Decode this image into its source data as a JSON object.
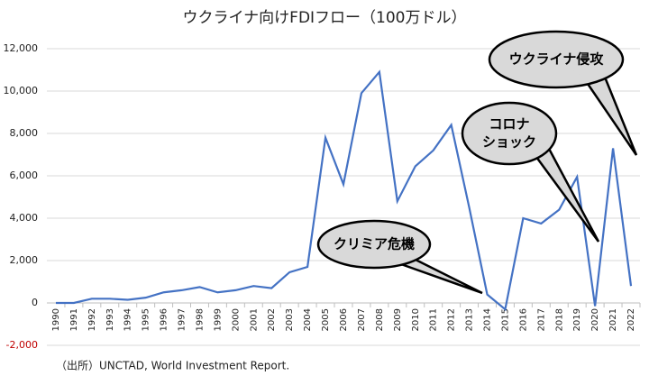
{
  "chart_data": {
    "type": "line",
    "title": "ウクライナ向けFDIフロー（100万ドル）",
    "categories": [
      "1990",
      "1991",
      "1992",
      "1993",
      "1994",
      "1995",
      "1996",
      "1997",
      "1998",
      "1999",
      "2000",
      "2001",
      "2002",
      "2003",
      "2004",
      "2005",
      "2006",
      "2007",
      "2008",
      "2009",
      "2010",
      "2011",
      "2012",
      "2013",
      "2014",
      "2015",
      "2016",
      "2017",
      "2018",
      "2019",
      "2020",
      "2021",
      "2022"
    ],
    "series": [
      {
        "color": "#4472c4",
        "values": [
          0,
          0,
          200,
          200,
          150,
          250,
          500,
          600,
          750,
          500,
          600,
          800,
          700,
          1450,
          1700,
          7800,
          5600,
          9900,
          10900,
          4800,
          6450,
          7200,
          8400,
          4500,
          400,
          -300,
          4000,
          3750,
          4400,
          5950,
          -150,
          7300,
          800
        ]
      }
    ],
    "ylim": [
      -2000,
      12000
    ],
    "yticks": [
      {
        "value": -2000,
        "label": "-2,000"
      },
      0,
      {
        "value": 2000,
        "label": "2,000"
      },
      {
        "value": 4000,
        "label": "4,000"
      },
      {
        "value": 6000,
        "label": "6,000"
      },
      {
        "value": 8000,
        "label": "8,000"
      },
      {
        "value": 10000,
        "label": "10,000"
      },
      {
        "value": 12000,
        "label": "12,000"
      }
    ],
    "negative_tick_color": "#c00000",
    "grid": true,
    "annotations": [
      {
        "lines": [
          "クリミア危機"
        ]
      },
      {
        "lines": [
          "コロナ",
          "ショック"
        ]
      },
      {
        "lines": [
          "ウクライナ侵攻"
        ]
      }
    ],
    "source": "（出所）UNCTAD, World Investment Report."
  }
}
